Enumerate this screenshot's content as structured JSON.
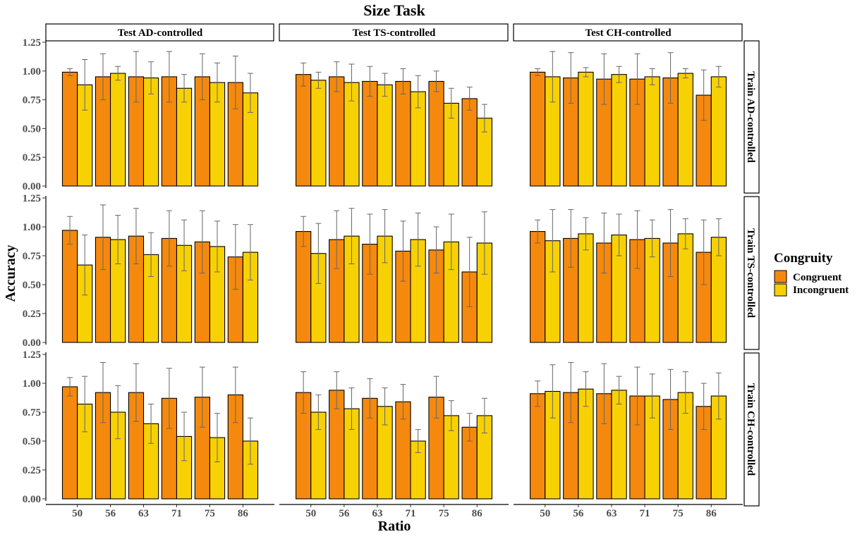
{
  "chart_data": {
    "type": "bar",
    "title": "Size Task",
    "xlabel": "Ratio",
    "ylabel": "Accuracy",
    "ylim": [
      0,
      1.25
    ],
    "yticks": [
      "0.00",
      "0.25",
      "0.50",
      "0.75",
      "1.00",
      "1.25"
    ],
    "categories": [
      "50",
      "56",
      "63",
      "71",
      "75",
      "86"
    ],
    "facet_columns": [
      "Test AD-controlled",
      "Test TS-controlled",
      "Test CH-controlled"
    ],
    "facet_rows": [
      "Train AD-controlled",
      "Train TS-controlled",
      "Train CH-controlled"
    ],
    "legend": {
      "title": "Congruity",
      "position": "right",
      "entries": [
        {
          "name": "Congruent",
          "color": "#F5890D"
        },
        {
          "name": "Incongruent",
          "color": "#F8D104"
        }
      ]
    },
    "colors": {
      "Congruent": "#F5890D",
      "Incongruent": "#F8D104",
      "errorbar": "#666666"
    },
    "grid": false,
    "panels": [
      [
        {
          "congruent": [
            0.99,
            0.95,
            0.95,
            0.95,
            0.95,
            0.9
          ],
          "congruent_err": [
            0.03,
            0.2,
            0.22,
            0.22,
            0.2,
            0.23
          ],
          "incongruent": [
            0.88,
            0.98,
            0.94,
            0.85,
            0.9,
            0.81
          ],
          "incongruent_err": [
            0.22,
            0.06,
            0.14,
            0.12,
            0.17,
            0.17
          ]
        },
        {
          "congruent": [
            0.97,
            0.95,
            0.91,
            0.91,
            0.91,
            0.76
          ],
          "congruent_err": [
            0.1,
            0.13,
            0.13,
            0.11,
            0.09,
            0.1
          ],
          "incongruent": [
            0.92,
            0.9,
            0.88,
            0.82,
            0.72,
            0.59
          ],
          "incongruent_err": [
            0.07,
            0.16,
            0.1,
            0.14,
            0.13,
            0.12
          ]
        },
        {
          "congruent": [
            0.99,
            0.94,
            0.93,
            0.93,
            0.94,
            0.79
          ],
          "congruent_err": [
            0.03,
            0.22,
            0.22,
            0.22,
            0.22,
            0.22
          ],
          "incongruent": [
            0.95,
            0.99,
            0.97,
            0.95,
            0.98,
            0.95
          ],
          "incongruent_err": [
            0.22,
            0.04,
            0.07,
            0.07,
            0.04,
            0.09
          ]
        }
      ],
      [
        {
          "congruent": [
            0.97,
            0.91,
            0.92,
            0.9,
            0.87,
            0.74
          ],
          "congruent_err": [
            0.12,
            0.28,
            0.24,
            0.24,
            0.27,
            0.28
          ],
          "incongruent": [
            0.67,
            0.89,
            0.76,
            0.84,
            0.83,
            0.78
          ],
          "incongruent_err": [
            0.26,
            0.21,
            0.19,
            0.22,
            0.22,
            0.24
          ]
        },
        {
          "congruent": [
            0.96,
            0.89,
            0.85,
            0.79,
            0.8,
            0.61
          ],
          "congruent_err": [
            0.13,
            0.25,
            0.26,
            0.26,
            0.2,
            0.3
          ],
          "incongruent": [
            0.77,
            0.92,
            0.92,
            0.89,
            0.87,
            0.86
          ],
          "incongruent_err": [
            0.26,
            0.24,
            0.23,
            0.23,
            0.24,
            0.27
          ]
        },
        {
          "congruent": [
            0.96,
            0.9,
            0.86,
            0.89,
            0.86,
            0.78
          ],
          "congruent_err": [
            0.1,
            0.25,
            0.26,
            0.25,
            0.29,
            0.28
          ],
          "incongruent": [
            0.88,
            0.94,
            0.93,
            0.9,
            0.94,
            0.91
          ],
          "incongruent_err": [
            0.27,
            0.14,
            0.18,
            0.16,
            0.13,
            0.16
          ]
        }
      ],
      [
        {
          "congruent": [
            0.97,
            0.92,
            0.92,
            0.87,
            0.88,
            0.9
          ],
          "congruent_err": [
            0.08,
            0.26,
            0.25,
            0.26,
            0.26,
            0.24
          ],
          "incongruent": [
            0.82,
            0.75,
            0.65,
            0.54,
            0.53,
            0.5
          ],
          "incongruent_err": [
            0.24,
            0.23,
            0.17,
            0.21,
            0.21,
            0.2
          ]
        },
        {
          "congruent": [
            0.92,
            0.94,
            0.87,
            0.84,
            0.88,
            0.62
          ],
          "congruent_err": [
            0.18,
            0.16,
            0.17,
            0.15,
            0.18,
            0.12
          ],
          "incongruent": [
            0.75,
            0.78,
            0.8,
            0.5,
            0.72,
            0.72
          ],
          "incongruent_err": [
            0.15,
            0.18,
            0.16,
            0.1,
            0.13,
            0.15
          ]
        },
        {
          "congruent": [
            0.91,
            0.92,
            0.91,
            0.89,
            0.86,
            0.8
          ],
          "congruent_err": [
            0.11,
            0.26,
            0.26,
            0.25,
            0.26,
            0.2
          ],
          "incongruent": [
            0.93,
            0.95,
            0.94,
            0.89,
            0.92,
            0.89
          ],
          "incongruent_err": [
            0.23,
            0.15,
            0.12,
            0.19,
            0.18,
            0.2
          ]
        }
      ]
    ]
  }
}
